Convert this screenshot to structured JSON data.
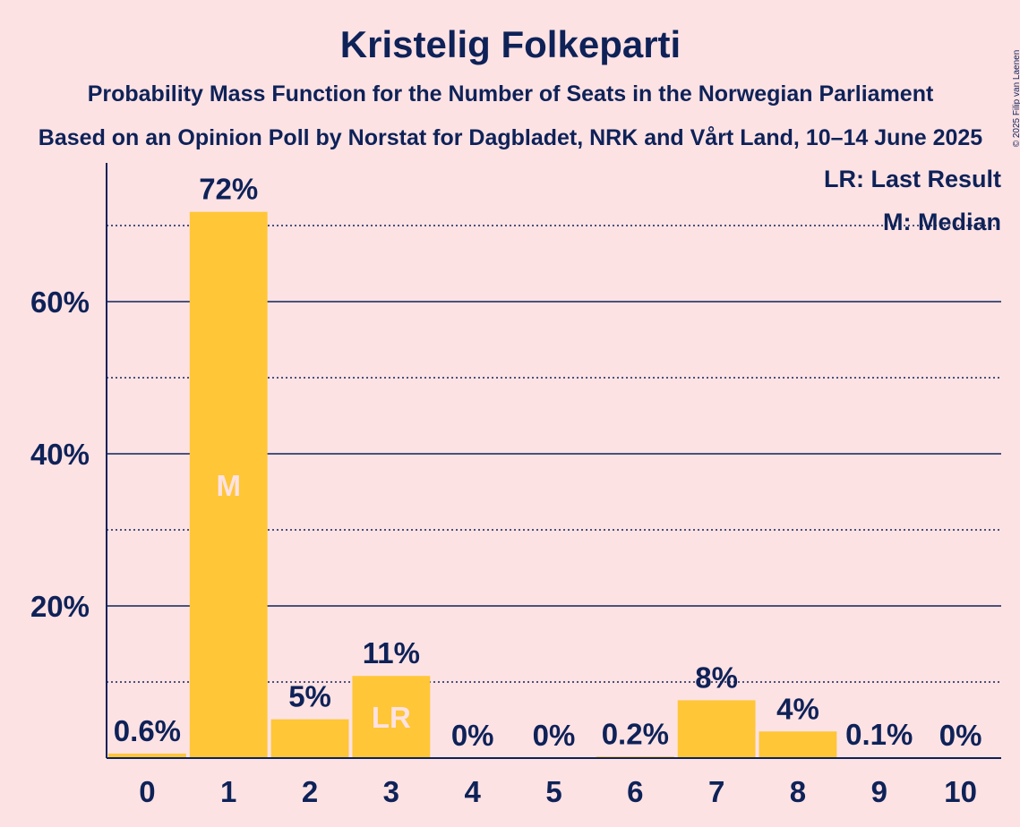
{
  "chart_data": {
    "type": "bar",
    "title": "Kristelig Folkeparti",
    "subtitle": "Probability Mass Function for the Number of Seats in the Norwegian Parliament",
    "subtitle2": "Based on an Opinion Poll by Norstat for Dagbladet, NRK and Vårt Land, 10–14 June 2025",
    "copyright": "© 2025 Filip van Laenen",
    "legend": [
      "LR: Last Result",
      "M: Median"
    ],
    "legend_position": "top-right",
    "categories": [
      "0",
      "1",
      "2",
      "3",
      "4",
      "5",
      "6",
      "7",
      "8",
      "9",
      "10"
    ],
    "values": [
      0.6,
      72,
      5,
      11,
      0,
      0,
      0.2,
      8,
      4,
      0.1,
      0
    ],
    "value_labels": [
      "0.6%",
      "72%",
      "5%",
      "11%",
      "0%",
      "0%",
      "0.2%",
      "8%",
      "4%",
      "0.1%",
      "0%"
    ],
    "bar_heights": [
      0.6,
      71.8,
      5.1,
      10.8,
      0,
      0,
      0.2,
      7.6,
      3.5,
      0.1,
      0
    ],
    "markers": {
      "1": "M",
      "3": "LR"
    },
    "yticks": [
      20,
      40,
      60
    ],
    "ytick_labels": [
      "20%",
      "40%",
      "60%"
    ],
    "minor_gridlines": [
      10,
      30,
      50,
      70
    ],
    "ylim": [
      0,
      78
    ],
    "xlabel": "",
    "ylabel": "",
    "colors": {
      "bar": "#FFC637",
      "text": "#0E2258",
      "background": "#FDE2E4"
    }
  }
}
